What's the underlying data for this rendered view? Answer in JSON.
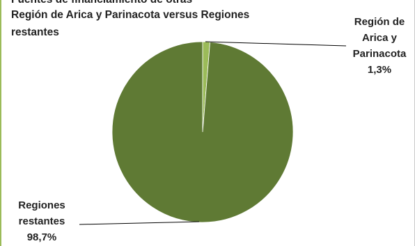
{
  "chart_data": {
    "type": "pie",
    "title_lines": [
      "Fuentes de financiamiento de otras",
      "Región de Arica y Parinacota versus Regiones",
      "restantes"
    ],
    "slices": [
      {
        "label_lines": [
          "Región de",
          "Arica y",
          "Parinacota"
        ],
        "value_text": "1,3%",
        "value": 1.3,
        "color": "#9bbb59"
      },
      {
        "label_lines": [
          "Regiones",
          "restantes"
        ],
        "value_text": "98,7%",
        "value": 98.7,
        "color": "#5f7a34"
      }
    ]
  }
}
